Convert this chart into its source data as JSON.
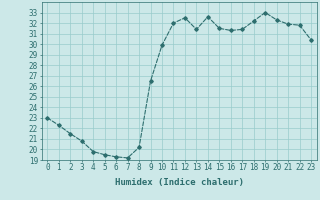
{
  "x": [
    0,
    1,
    2,
    3,
    4,
    5,
    6,
    7,
    8,
    9,
    10,
    11,
    12,
    13,
    14,
    15,
    16,
    17,
    18,
    19,
    20,
    21,
    22,
    23
  ],
  "y": [
    23.0,
    22.3,
    21.5,
    20.8,
    19.8,
    19.5,
    19.3,
    19.2,
    20.2,
    26.5,
    29.9,
    32.0,
    32.5,
    31.4,
    32.6,
    31.5,
    31.3,
    31.4,
    32.2,
    33.0,
    32.3,
    31.9,
    31.8,
    30.4
  ],
  "line_color": "#2d6e6e",
  "bg_color": "#cce8e8",
  "xlabel": "Humidex (Indice chaleur)",
  "ylim": [
    19,
    34
  ],
  "xlim": [
    -0.5,
    23.5
  ],
  "yticks": [
    19,
    20,
    21,
    22,
    23,
    24,
    25,
    26,
    27,
    28,
    29,
    30,
    31,
    32,
    33
  ],
  "xticks": [
    0,
    1,
    2,
    3,
    4,
    5,
    6,
    7,
    8,
    9,
    10,
    11,
    12,
    13,
    14,
    15,
    16,
    17,
    18,
    19,
    20,
    21,
    22,
    23
  ],
  "grid_color": "#99cccc",
  "font_color": "#2d6e6e",
  "tick_fontsize": 5.5,
  "xlabel_fontsize": 6.5
}
